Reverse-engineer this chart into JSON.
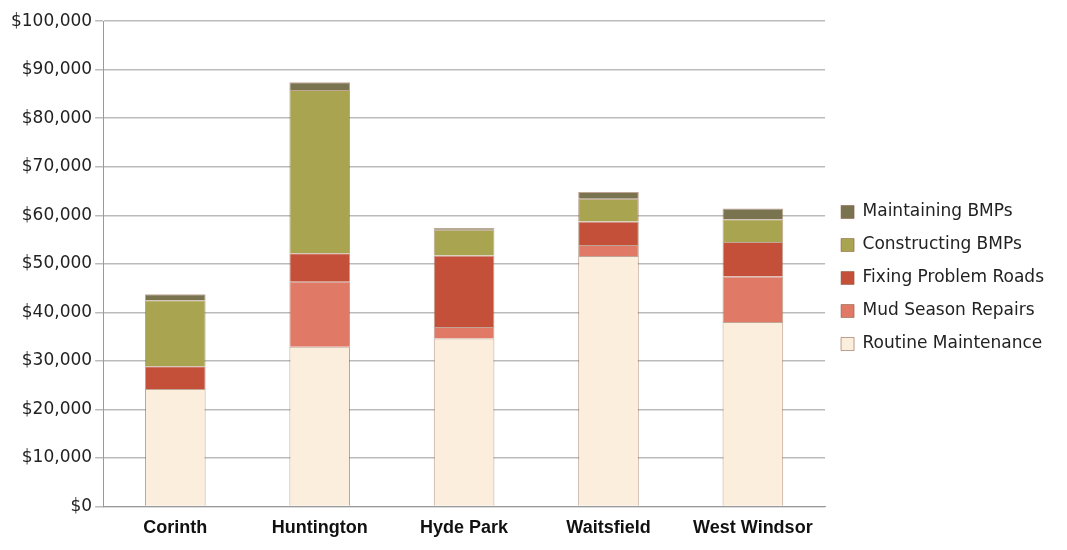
{
  "chart_data": {
    "type": "bar",
    "stacked": true,
    "categories": [
      "Corinth",
      "Huntington",
      "Hyde Park",
      "Waitsfield",
      "West Windsor"
    ],
    "series": [
      {
        "name": "Routine Maintenance",
        "color": "#fbeedd",
        "values": [
          24200,
          32900,
          34600,
          51600,
          38000
        ]
      },
      {
        "name": "Mud Season Repairs",
        "color": "#e07a66",
        "values": [
          0,
          13400,
          2400,
          2300,
          9400
        ]
      },
      {
        "name": "Fixing Problem Roads",
        "color": "#c4503a",
        "values": [
          4700,
          5900,
          14700,
          4800,
          7100
        ]
      },
      {
        "name": "Constructing BMPs",
        "color": "#a8a44f",
        "values": [
          13600,
          33600,
          5300,
          4700,
          4700
        ]
      },
      {
        "name": "Maintaining BMPs",
        "color": "#7a7350",
        "values": [
          1200,
          1600,
          400,
          1400,
          2200
        ]
      }
    ],
    "ylim": [
      0,
      100000
    ],
    "yticks": [
      {
        "value": 0,
        "label": "$0"
      },
      {
        "value": 10000,
        "label": "$10,000"
      },
      {
        "value": 20000,
        "label": "$20,000"
      },
      {
        "value": 30000,
        "label": "$30,000"
      },
      {
        "value": 40000,
        "label": "$40,000"
      },
      {
        "value": 50000,
        "label": "$50,000"
      },
      {
        "value": 60000,
        "label": "$60,000"
      },
      {
        "value": 70000,
        "label": "$70,000"
      },
      {
        "value": 80000,
        "label": "$80,000"
      },
      {
        "value": 90000,
        "label": "$90,000"
      },
      {
        "value": 100000,
        "label": "$100,000"
      }
    ],
    "grid": "y",
    "legend": "right"
  }
}
